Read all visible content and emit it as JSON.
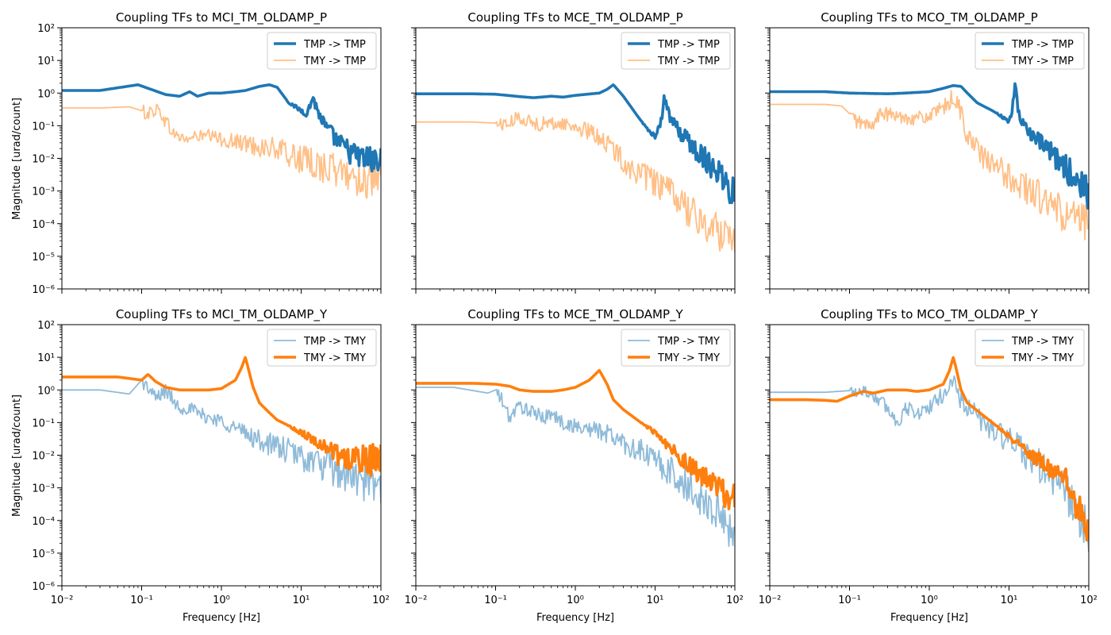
{
  "figure": {
    "xlabel": "Frequency [Hz]",
    "ylabel": "Magnitude [urad/count]",
    "xtick_labels": [
      "10⁻²",
      "10⁻¹",
      "10⁰",
      "10¹",
      "10²"
    ],
    "ytick_labels": [
      "10⁻⁶",
      "10⁻⁵",
      "10⁻⁴",
      "10⁻³",
      "10⁻²",
      "10⁻¹",
      "10⁰",
      "10¹",
      "10²"
    ],
    "colors": {
      "blue": "#1f77b4",
      "orange": "#ff7f0e"
    }
  },
  "chart_data": [
    {
      "type": "line",
      "title": "Coupling TFs to MCI_TM_OLDAMP_P",
      "xlabel": "",
      "ylabel": "Magnitude [urad/count]",
      "xscale": "log",
      "yscale": "log",
      "xlim": [
        0.01,
        100
      ],
      "ylim": [
        1e-06,
        100
      ],
      "legend": "top-right",
      "series": [
        {
          "name": "TMP -> TMP",
          "color": "#1f77b4",
          "emphasis": "bold",
          "x": [
            0.01,
            0.03,
            0.09,
            0.2,
            0.3,
            0.4,
            0.5,
            0.7,
            1.0,
            1.5,
            2.0,
            3.0,
            4.0,
            5.0,
            7.0,
            10.0,
            12.0,
            14.0,
            16.0,
            20.0,
            30.0,
            50.0,
            100.0
          ],
          "y": [
            1.2,
            1.2,
            1.8,
            0.9,
            0.8,
            1.1,
            0.8,
            1.0,
            1.0,
            1.1,
            1.2,
            1.6,
            1.8,
            1.5,
            0.5,
            0.3,
            0.25,
            0.8,
            0.3,
            0.1,
            0.03,
            0.012,
            0.008
          ]
        },
        {
          "name": "TMY -> TMP",
          "color": "#ff7f0e",
          "emphasis": "light",
          "x": [
            0.01,
            0.03,
            0.07,
            0.12,
            0.16,
            0.25,
            0.35,
            0.5,
            0.7,
            1.0,
            2.0,
            5.0,
            10.0,
            20.0,
            50.0,
            100.0
          ],
          "y": [
            0.35,
            0.35,
            0.38,
            0.25,
            0.35,
            0.06,
            0.04,
            0.05,
            0.05,
            0.04,
            0.03,
            0.02,
            0.01,
            0.006,
            0.003,
            0.002
          ]
        }
      ]
    },
    {
      "type": "line",
      "title": "Coupling TFs to MCE_TM_OLDAMP_P",
      "xlabel": "",
      "ylabel": "",
      "xscale": "log",
      "yscale": "log",
      "xlim": [
        0.01,
        100
      ],
      "ylim": [
        1e-06,
        100
      ],
      "legend": "top-right",
      "series": [
        {
          "name": "TMP -> TMP",
          "color": "#1f77b4",
          "emphasis": "bold",
          "x": [
            0.01,
            0.05,
            0.1,
            0.2,
            0.3,
            0.5,
            0.7,
            1.0,
            2.0,
            2.5,
            3.0,
            4.0,
            6.0,
            8.0,
            10.0,
            12.0,
            13.0,
            15.0,
            20.0,
            30.0,
            40.0,
            60.0,
            100.0
          ],
          "y": [
            0.95,
            0.95,
            0.92,
            0.78,
            0.72,
            0.8,
            0.75,
            0.85,
            1.0,
            1.3,
            1.8,
            0.8,
            0.2,
            0.08,
            0.05,
            0.15,
            0.8,
            0.2,
            0.07,
            0.025,
            0.012,
            0.005,
            0.001
          ]
        },
        {
          "name": "TMY -> TMP",
          "color": "#ff7f0e",
          "emphasis": "light",
          "x": [
            0.01,
            0.05,
            0.1,
            0.15,
            0.2,
            0.3,
            0.5,
            0.7,
            1.0,
            2.0,
            3.0,
            5.0,
            10.0,
            20.0,
            30.0,
            50.0,
            100.0
          ],
          "y": [
            0.13,
            0.13,
            0.12,
            0.12,
            0.2,
            0.12,
            0.12,
            0.12,
            0.1,
            0.05,
            0.02,
            0.005,
            0.002,
            0.0006,
            0.0002,
            8e-05,
            5e-05
          ]
        }
      ]
    },
    {
      "type": "line",
      "title": "Coupling TFs to MCO_TM_OLDAMP_P",
      "xlabel": "",
      "ylabel": "",
      "xscale": "log",
      "yscale": "log",
      "xlim": [
        0.01,
        100
      ],
      "ylim": [
        1e-06,
        100
      ],
      "legend": "top-right",
      "series": [
        {
          "name": "TMP -> TMP",
          "color": "#1f77b4",
          "emphasis": "bold",
          "x": [
            0.01,
            0.05,
            0.1,
            0.3,
            0.5,
            1.0,
            1.5,
            2.0,
            2.5,
            3.0,
            4.0,
            6.0,
            8.0,
            10.0,
            11.0,
            12.0,
            13.0,
            14.0,
            20.0,
            30.0,
            50.0,
            100.0
          ],
          "y": [
            1.1,
            1.1,
            1.0,
            0.95,
            1.0,
            1.1,
            1.4,
            1.7,
            1.6,
            1.0,
            0.5,
            0.3,
            0.2,
            0.12,
            0.3,
            2.5,
            0.3,
            0.15,
            0.05,
            0.02,
            0.006,
            0.001
          ]
        },
        {
          "name": "TMY -> TMP",
          "color": "#ff7f0e",
          "emphasis": "light",
          "x": [
            0.01,
            0.05,
            0.08,
            0.12,
            0.18,
            0.25,
            0.4,
            0.7,
            1.0,
            1.5,
            2.0,
            2.5,
            3.0,
            5.0,
            10.0,
            20.0,
            50.0,
            100.0
          ],
          "y": [
            0.45,
            0.45,
            0.4,
            0.15,
            0.1,
            0.25,
            0.2,
            0.18,
            0.2,
            0.35,
            0.8,
            0.3,
            0.05,
            0.01,
            0.003,
            0.001,
            0.0002,
            0.0001
          ]
        }
      ]
    },
    {
      "type": "line",
      "title": "Coupling TFs to MCI_TM_OLDAMP_Y",
      "xlabel": "Frequency [Hz]",
      "ylabel": "Magnitude [urad/count]",
      "xscale": "log",
      "yscale": "log",
      "xlim": [
        0.01,
        100
      ],
      "ylim": [
        1e-06,
        100
      ],
      "legend": "top-right",
      "series": [
        {
          "name": "TMP -> TMY",
          "color": "#1f77b4",
          "emphasis": "light",
          "x": [
            0.01,
            0.03,
            0.07,
            0.1,
            0.15,
            0.2,
            0.3,
            0.4,
            0.5,
            0.7,
            1.0,
            2.0,
            3.0,
            5.0,
            10.0,
            20.0,
            50.0,
            100.0
          ],
          "y": [
            1.0,
            1.0,
            0.75,
            2.0,
            0.6,
            1.0,
            0.3,
            0.3,
            0.2,
            0.15,
            0.12,
            0.05,
            0.03,
            0.02,
            0.01,
            0.005,
            0.002,
            0.001
          ]
        },
        {
          "name": "TMY -> TMY",
          "color": "#ff7f0e",
          "emphasis": "bold",
          "x": [
            0.01,
            0.05,
            0.1,
            0.12,
            0.15,
            0.2,
            0.3,
            0.5,
            0.7,
            1.0,
            1.5,
            1.8,
            2.0,
            2.2,
            2.5,
            3.0,
            4.0,
            5.0,
            7.0,
            10.0,
            20.0,
            30.0,
            50.0,
            100.0
          ],
          "y": [
            2.5,
            2.5,
            2.0,
            3.0,
            1.8,
            1.2,
            1.0,
            1.0,
            1.0,
            1.1,
            2.0,
            5.0,
            10.0,
            4.0,
            1.2,
            0.4,
            0.2,
            0.12,
            0.08,
            0.05,
            0.02,
            0.01,
            0.008,
            0.008
          ]
        }
      ]
    },
    {
      "type": "line",
      "title": "Coupling TFs to MCE_TM_OLDAMP_Y",
      "xlabel": "Frequency [Hz]",
      "ylabel": "",
      "xscale": "log",
      "yscale": "log",
      "xlim": [
        0.01,
        100
      ],
      "ylim": [
        1e-06,
        100
      ],
      "legend": "top-right",
      "series": [
        {
          "name": "TMP -> TMY",
          "color": "#1f77b4",
          "emphasis": "light",
          "x": [
            0.01,
            0.03,
            0.08,
            0.1,
            0.12,
            0.15,
            0.2,
            0.3,
            0.4,
            0.5,
            0.7,
            1.0,
            2.0,
            3.0,
            5.0,
            10.0,
            20.0,
            50.0,
            100.0
          ],
          "y": [
            1.2,
            1.2,
            0.8,
            1.0,
            0.5,
            0.15,
            0.35,
            0.2,
            0.15,
            0.2,
            0.1,
            0.08,
            0.06,
            0.04,
            0.02,
            0.008,
            0.002,
            0.0003,
            5e-05
          ]
        },
        {
          "name": "TMY -> TMY",
          "color": "#ff7f0e",
          "emphasis": "bold",
          "x": [
            0.01,
            0.05,
            0.1,
            0.15,
            0.2,
            0.3,
            0.5,
            0.7,
            1.0,
            1.5,
            2.0,
            2.5,
            3.0,
            4.0,
            6.0,
            10.0,
            15.0,
            20.0,
            30.0,
            50.0,
            100.0
          ],
          "y": [
            1.6,
            1.6,
            1.5,
            1.3,
            1.0,
            0.9,
            0.9,
            1.0,
            1.2,
            2.0,
            4.0,
            1.5,
            0.5,
            0.25,
            0.12,
            0.05,
            0.02,
            0.01,
            0.004,
            0.0015,
            0.0004
          ]
        }
      ]
    },
    {
      "type": "line",
      "title": "Coupling TFs to MCO_TM_OLDAMP_Y",
      "xlabel": "Frequency [Hz]",
      "ylabel": "",
      "xscale": "log",
      "yscale": "log",
      "xlim": [
        0.01,
        100
      ],
      "ylim": [
        1e-06,
        100
      ],
      "legend": "top-right",
      "series": [
        {
          "name": "TMP -> TMY",
          "color": "#1f77b4",
          "emphasis": "light",
          "x": [
            0.01,
            0.05,
            0.1,
            0.15,
            0.2,
            0.3,
            0.4,
            0.5,
            0.7,
            1.0,
            1.5,
            2.0,
            2.5,
            3.0,
            5.0,
            10.0,
            20.0,
            50.0,
            100.0
          ],
          "y": [
            0.85,
            0.85,
            0.95,
            1.0,
            0.7,
            0.3,
            0.1,
            0.3,
            0.2,
            0.3,
            0.8,
            2.0,
            0.5,
            0.3,
            0.1,
            0.03,
            0.008,
            0.001,
            5e-05
          ]
        },
        {
          "name": "TMY -> TMY",
          "color": "#ff7f0e",
          "emphasis": "bold",
          "x": [
            0.01,
            0.03,
            0.05,
            0.07,
            0.1,
            0.15,
            0.2,
            0.3,
            0.5,
            0.7,
            1.0,
            1.5,
            1.8,
            2.0,
            2.2,
            2.5,
            3.0,
            5.0,
            10.0,
            20.0,
            50.0,
            100.0
          ],
          "y": [
            0.5,
            0.5,
            0.48,
            0.45,
            0.65,
            0.9,
            0.8,
            1.0,
            1.0,
            0.9,
            1.0,
            1.5,
            4.0,
            10.0,
            4.0,
            1.0,
            0.4,
            0.15,
            0.04,
            0.01,
            0.002,
            5e-05
          ]
        }
      ]
    }
  ]
}
